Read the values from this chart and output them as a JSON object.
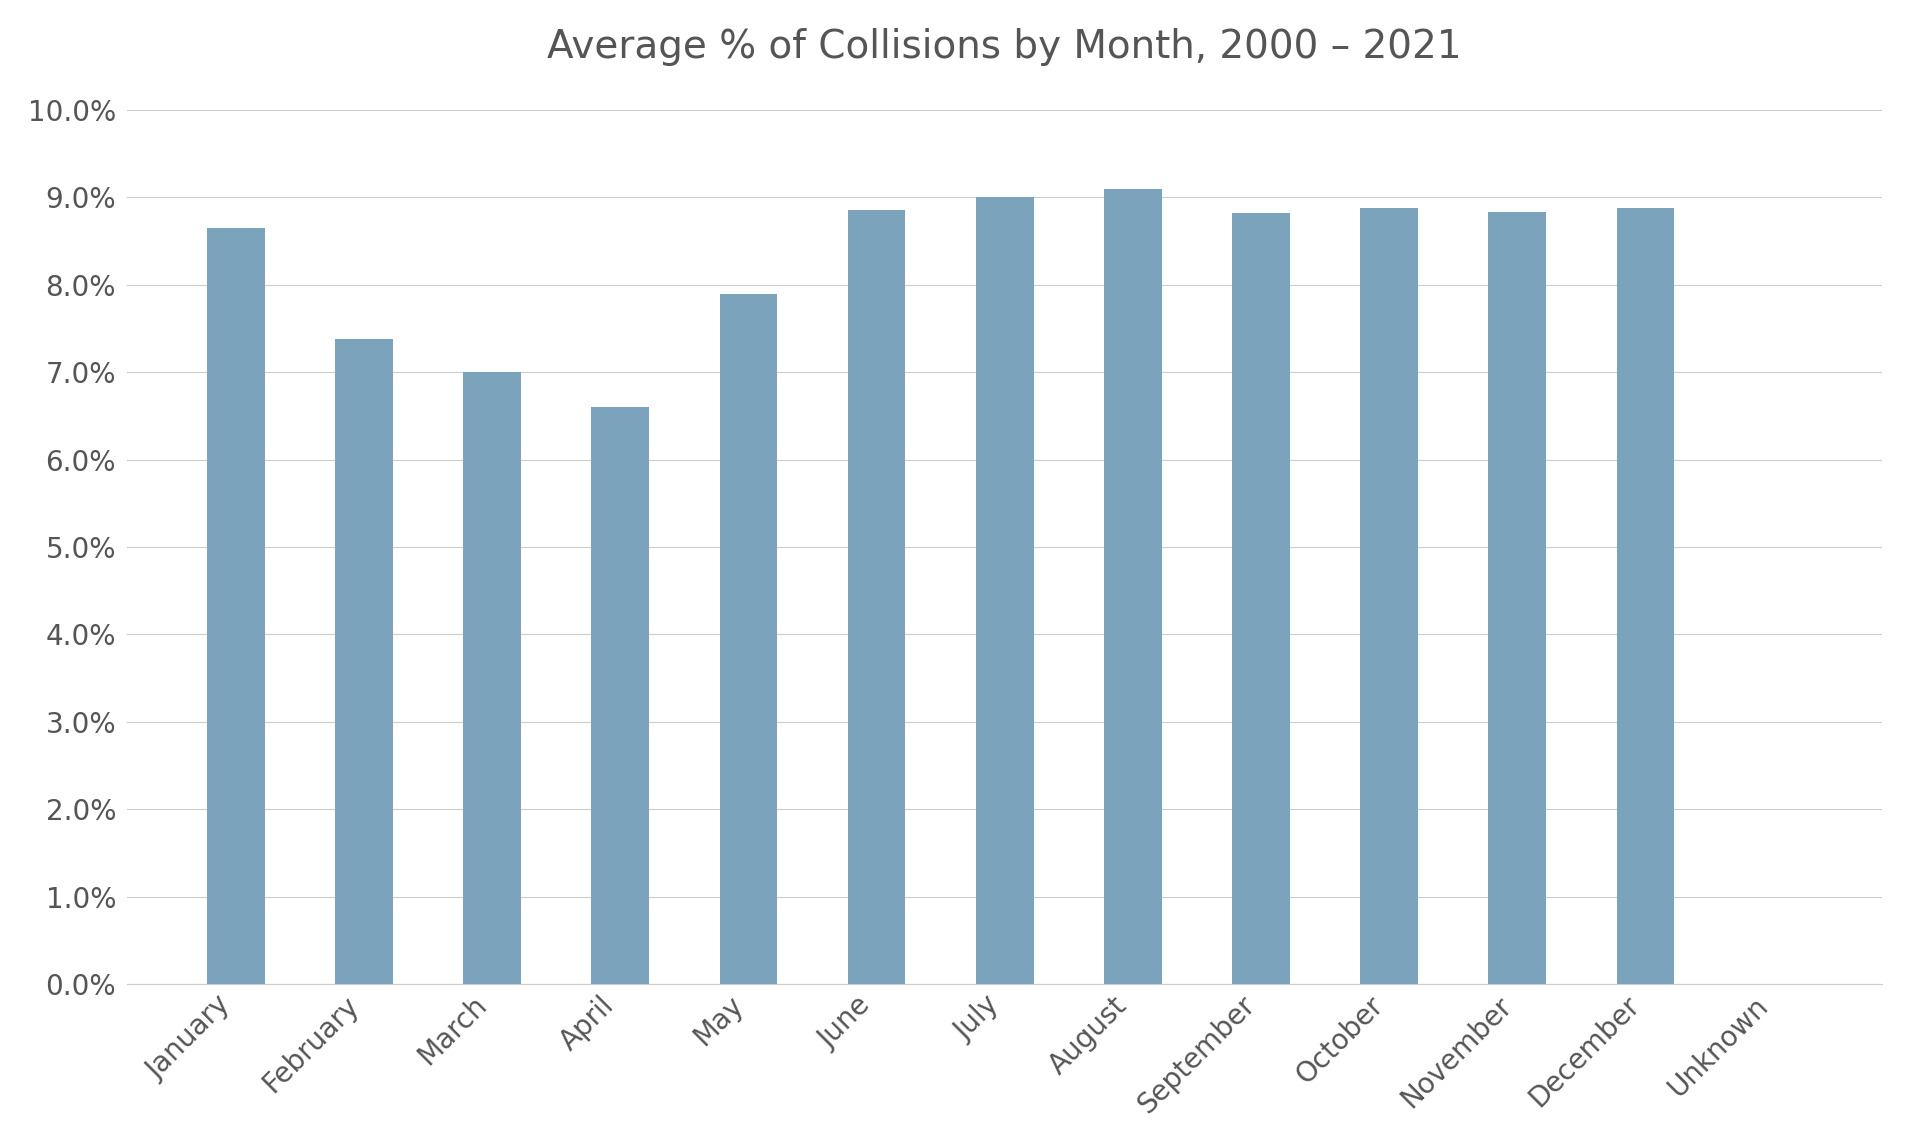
{
  "title": "Average % of Collisions by Month, 2000 – 2021",
  "categories": [
    "January",
    "February",
    "March",
    "April",
    "May",
    "June",
    "July",
    "August",
    "September",
    "October",
    "November",
    "December",
    "Unknown"
  ],
  "values": [
    0.0865,
    0.0738,
    0.07,
    0.066,
    0.079,
    0.0885,
    0.09,
    0.091,
    0.0882,
    0.0888,
    0.0883,
    0.0888,
    0.0
  ],
  "bar_color": "#7ba3bc",
  "background_color": "#ffffff",
  "ylim": [
    0.0,
    0.102
  ],
  "yticks": [
    0.0,
    0.01,
    0.02,
    0.03,
    0.04,
    0.05,
    0.06,
    0.07,
    0.08,
    0.09,
    0.1
  ],
  "title_fontsize": 28,
  "tick_fontsize": 20,
  "grid_color": "#cccccc",
  "axis_color": "#555555",
  "bar_width": 0.45
}
